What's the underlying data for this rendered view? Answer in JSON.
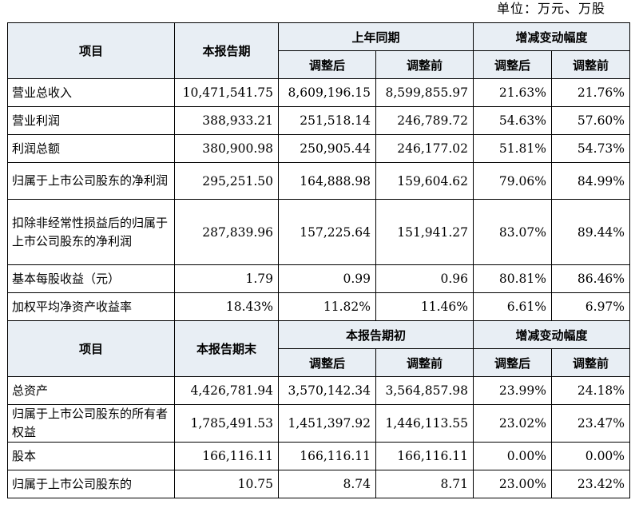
{
  "unit_label": "单位：万元、万股",
  "section1": {
    "header": {
      "item": "项目",
      "current": "本报告期",
      "prior": "上年同期",
      "change": "增减变动幅度",
      "adjusted_after": "调整后",
      "adjusted_before": "调整前"
    },
    "rows": [
      {
        "label": "营业总收入",
        "current": "10,471,541.75",
        "prior_after": "8,609,196.15",
        "prior_before": "8,599,855.97",
        "chg_after": "21.63%",
        "chg_before": "21.76%"
      },
      {
        "label": "营业利润",
        "current": "388,933.21",
        "prior_after": "251,518.14",
        "prior_before": "246,789.72",
        "chg_after": "54.63%",
        "chg_before": "57.60%"
      },
      {
        "label": "利润总额",
        "current": "380,900.98",
        "prior_after": "250,905.44",
        "prior_before": "246,177.02",
        "chg_after": "51.81%",
        "chg_before": "54.73%"
      },
      {
        "label": "归属于上市公司股东的净利润",
        "current": "295,251.50",
        "prior_after": "164,888.98",
        "prior_before": "159,604.62",
        "chg_after": "79.06%",
        "chg_before": "84.99%"
      },
      {
        "label": "扣除非经常性损益后的归属于上市公司股东的净利润",
        "current": "287,839.96",
        "prior_after": "157,225.64",
        "prior_before": "151,941.27",
        "chg_after": "83.07%",
        "chg_before": "89.44%"
      },
      {
        "label": "基本每股收益（元）",
        "current": "1.79",
        "prior_after": "0.99",
        "prior_before": "0.96",
        "chg_after": "80.81%",
        "chg_before": "86.46%"
      },
      {
        "label": "加权平均净资产收益率",
        "current": "18.43%",
        "prior_after": "11.82%",
        "prior_before": "11.46%",
        "chg_after": "6.61%",
        "chg_before": "6.97%"
      }
    ]
  },
  "section2": {
    "header": {
      "item": "项目",
      "current": "本报告期末",
      "prior": "本报告期初",
      "change": "增减变动幅度",
      "adjusted_after": "调整后",
      "adjusted_before": "调整前"
    },
    "rows": [
      {
        "label": "总资产",
        "current": "4,426,781.94",
        "prior_after": "3,570,142.34",
        "prior_before": "3,564,857.98",
        "chg_after": "23.99%",
        "chg_before": "24.18%"
      },
      {
        "label": "归属于上市公司股东的所有者权益",
        "current": "1,785,491.53",
        "prior_after": "1,451,397.92",
        "prior_before": "1,446,113.55",
        "chg_after": "23.02%",
        "chg_before": "23.47%"
      },
      {
        "label": "股本",
        "current": "166,116.11",
        "prior_after": "166,116.11",
        "prior_before": "166,116.11",
        "chg_after": "0.00%",
        "chg_before": "0.00%"
      },
      {
        "label": "归属于上市公司股东的",
        "current": "10.75",
        "prior_after": "8.74",
        "prior_before": "8.71",
        "chg_after": "23.00%",
        "chg_before": "23.42%"
      }
    ]
  }
}
